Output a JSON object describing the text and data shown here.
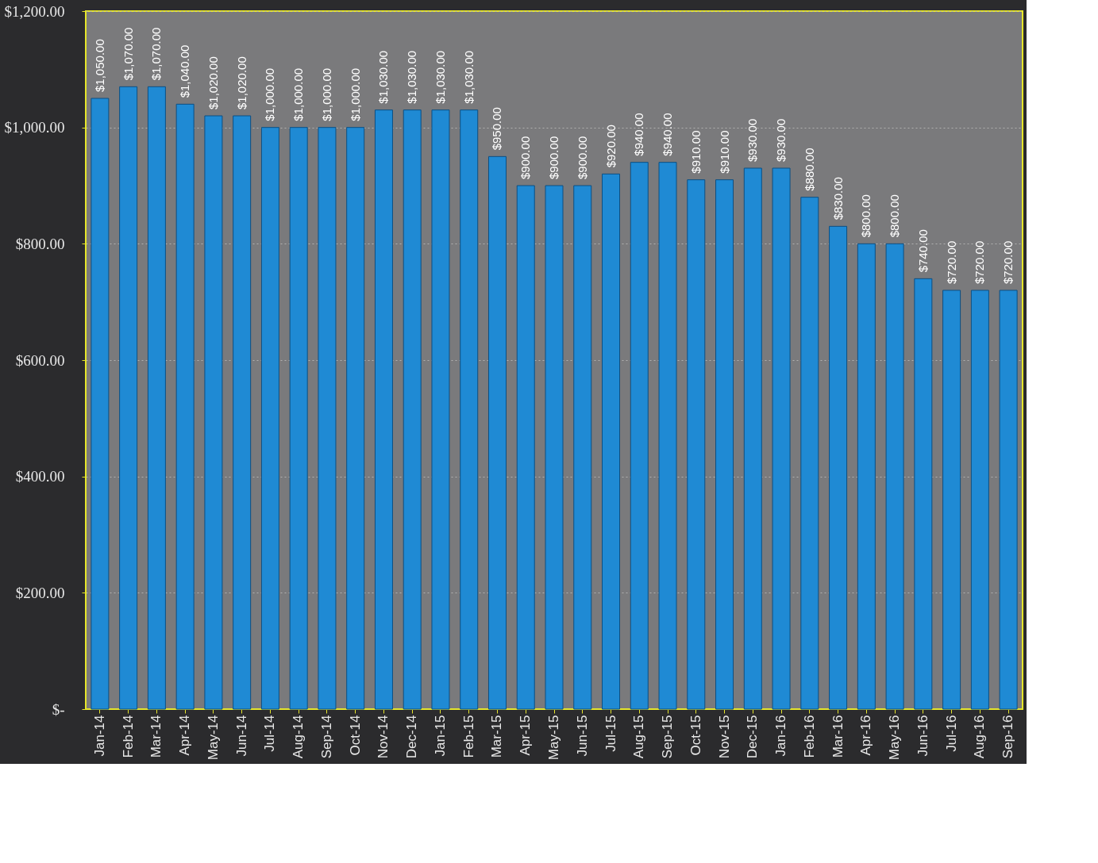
{
  "chart_data": {
    "type": "bar",
    "categories": [
      "Jan-14",
      "Feb-14",
      "Mar-14",
      "Apr-14",
      "May-14",
      "Jun-14",
      "Jul-14",
      "Aug-14",
      "Sep-14",
      "Oct-14",
      "Nov-14",
      "Dec-14",
      "Jan-15",
      "Feb-15",
      "Mar-15",
      "Apr-15",
      "May-15",
      "Jun-15",
      "Jul-15",
      "Aug-15",
      "Sep-15",
      "Oct-15",
      "Nov-15",
      "Dec-15",
      "Jan-16",
      "Feb-16",
      "Mar-16",
      "Apr-16",
      "May-16",
      "Jun-16",
      "Jul-16",
      "Aug-16",
      "Sep-16"
    ],
    "values": [
      1050,
      1070,
      1070,
      1040,
      1020,
      1020,
      1000,
      1000,
      1000,
      1000,
      1030,
      1030,
      1030,
      1030,
      950,
      900,
      900,
      900,
      920,
      940,
      940,
      910,
      910,
      930,
      930,
      880,
      830,
      800,
      800,
      740,
      720,
      720,
      720
    ],
    "color": "#1f8ad4",
    "ylim": [
      0,
      1200
    ],
    "yticks": [
      {
        "value": 0,
        "label": "$-"
      },
      {
        "value": 200,
        "label": "$200.00"
      },
      {
        "value": 400,
        "label": "$400.00"
      },
      {
        "value": 600,
        "label": "$600.00"
      },
      {
        "value": 800,
        "label": "$800.00"
      },
      {
        "value": 1000,
        "label": "$1,000.00"
      },
      {
        "value": 1200,
        "label": "$1,200.00"
      }
    ],
    "grid": "y",
    "value_labels": [
      "$1,050.00",
      "$1,070.00",
      "$1,070.00",
      "$1,040.00",
      "$1,020.00",
      "$1,020.00",
      "$1,000.00",
      "$1,000.00",
      "$1,000.00",
      "$1,000.00",
      "$1,030.00",
      "$1,030.00",
      "$1,030.00",
      "$1,030.00",
      "$950.00",
      "$900.00",
      "$900.00",
      "$900.00",
      "$920.00",
      "$940.00",
      "$940.00",
      "$910.00",
      "$910.00",
      "$930.00",
      "$930.00",
      "$880.00",
      "$830.00",
      "$800.00",
      "$800.00",
      "$740.00",
      "$720.00",
      "$720.00",
      "$720.00"
    ]
  }
}
